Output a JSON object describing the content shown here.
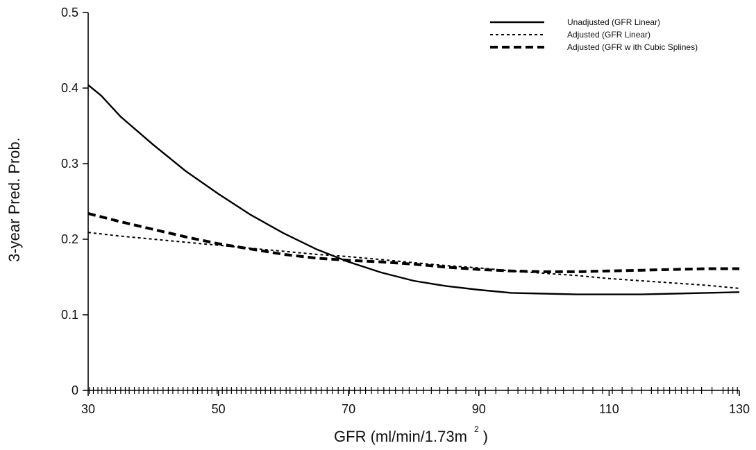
{
  "chart_data": {
    "type": "line",
    "xlabel": "GFR (ml/min/1.73m",
    "xlabel_sup": "2",
    "xlabel_close": ")",
    "ylabel": "3-year Pred. Prob.",
    "xlim": [
      30,
      130
    ],
    "ylim": [
      0,
      0.5
    ],
    "x_ticks": [
      30,
      50,
      70,
      90,
      110,
      130
    ],
    "x_tick_labels": [
      "30",
      "50",
      "70",
      "90",
      "110",
      "130"
    ],
    "y_ticks": [
      0,
      0.1,
      0.2,
      0.3,
      0.4,
      0.5
    ],
    "y_tick_labels": [
      "0",
      "0.1",
      "0.2",
      "0.3",
      "0.4",
      "0.5"
    ],
    "grid": false,
    "legend_position": "top-right",
    "series": [
      {
        "name": "Unadjusted (GFR Linear)",
        "style": "solid",
        "x": [
          30,
          32,
          35,
          40,
          45,
          50,
          55,
          60,
          65,
          70,
          75,
          80,
          85,
          90,
          95,
          100,
          105,
          110,
          115,
          120,
          125,
          130
        ],
        "y": [
          0.404,
          0.39,
          0.362,
          0.325,
          0.29,
          0.26,
          0.232,
          0.208,
          0.187,
          0.17,
          0.156,
          0.145,
          0.138,
          0.133,
          0.129,
          0.128,
          0.127,
          0.127,
          0.127,
          0.128,
          0.129,
          0.13
        ]
      },
      {
        "name": "Adjusted (GFR Linear)",
        "style": "dotted",
        "x": [
          30,
          35,
          40,
          45,
          50,
          55,
          60,
          65,
          70,
          75,
          80,
          85,
          90,
          95,
          100,
          105,
          110,
          115,
          120,
          125,
          130
        ],
        "y": [
          0.209,
          0.204,
          0.2,
          0.196,
          0.192,
          0.188,
          0.184,
          0.18,
          0.177,
          0.173,
          0.169,
          0.165,
          0.162,
          0.158,
          0.155,
          0.152,
          0.148,
          0.145,
          0.142,
          0.139,
          0.135
        ]
      },
      {
        "name": "Adjusted (GFR w ith Cubic Splines)",
        "style": "dashed",
        "x": [
          30,
          35,
          40,
          45,
          50,
          55,
          60,
          65,
          70,
          75,
          80,
          85,
          90,
          95,
          100,
          105,
          110,
          115,
          120,
          125,
          130
        ],
        "y": [
          0.234,
          0.223,
          0.213,
          0.203,
          0.194,
          0.187,
          0.18,
          0.175,
          0.172,
          0.17,
          0.167,
          0.163,
          0.16,
          0.158,
          0.157,
          0.157,
          0.158,
          0.159,
          0.16,
          0.161,
          0.161
        ]
      }
    ],
    "rug_x": [
      30.2,
      30.8,
      31.5,
      32.1,
      32.9,
      33.4,
      34.2,
      35.0,
      35.7,
      36.3,
      37.1,
      37.8,
      38.5,
      39.2,
      40.1,
      40.7,
      41.5,
      42.3,
      43.0,
      43.8,
      44.6,
      45.3,
      46.1,
      46.8,
      47.5,
      48.3,
      49.0,
      49.8,
      50.6,
      51.3,
      52.0,
      52.8,
      53.5,
      54.2,
      55.0,
      55.8,
      56.5,
      57.2,
      58.0,
      58.7,
      59.5,
      60.4,
      61.0,
      61.9,
      62.6,
      63.3,
      64.2,
      65.0,
      65.8,
      66.7,
      67.5,
      68.4,
      69.2,
      70.1,
      70.9,
      71.8,
      72.6,
      73.5,
      74.5,
      75.4,
      76.3,
      77.2,
      78.3,
      79.3,
      80.4,
      81.5,
      82.7,
      84.0,
      85.2,
      86.5,
      88.0,
      89.5,
      91.0,
      92.6,
      94.5,
      96.0,
      97.2,
      98.3,
      99.5,
      100.6,
      101.8,
      103.0,
      104.5,
      106.0,
      107.5,
      109.0,
      110.5,
      112.0,
      113.5,
      115.0,
      116.5,
      117.5,
      118.4,
      119.3,
      120.2,
      121.1,
      122.0,
      123.0,
      124.2,
      125.8,
      127.5,
      128.3,
      129.0,
      129.7
    ]
  }
}
